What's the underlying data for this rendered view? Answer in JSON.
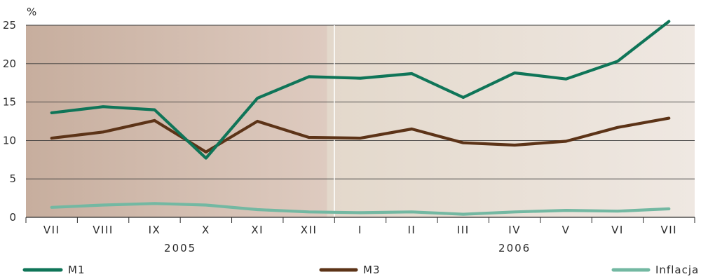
{
  "chart_data": {
    "type": "line",
    "y_unit": "%",
    "ylim": [
      0,
      25
    ],
    "y_ticks": [
      0,
      5,
      10,
      15,
      20,
      25
    ],
    "categories": [
      "VII",
      "VIII",
      "IX",
      "X",
      "XI",
      "XII",
      "I",
      "II",
      "III",
      "IV",
      "V",
      "VI",
      "VII"
    ],
    "year_groups": [
      {
        "label": "2005",
        "from": 0,
        "to": 5
      },
      {
        "label": "2006",
        "from": 6,
        "to": 12
      }
    ],
    "grid": true,
    "legend_position": "bottom",
    "series": [
      {
        "name": "M1",
        "color": "#0f7558",
        "values": [
          13.6,
          14.4,
          14.0,
          7.7,
          15.5,
          18.3,
          18.1,
          18.7,
          15.6,
          18.8,
          18.0,
          20.3,
          25.5
        ]
      },
      {
        "name": "M3",
        "color": "#5c3317",
        "values": [
          10.3,
          11.1,
          12.6,
          8.5,
          12.5,
          10.4,
          10.3,
          11.5,
          9.7,
          9.4,
          9.9,
          11.7,
          12.9
        ]
      },
      {
        "name": "Inflacja",
        "color": "#73b8a2",
        "values": [
          1.3,
          1.6,
          1.8,
          1.6,
          1.0,
          0.7,
          0.6,
          0.7,
          0.4,
          0.7,
          0.9,
          0.8,
          1.1
        ]
      }
    ]
  }
}
